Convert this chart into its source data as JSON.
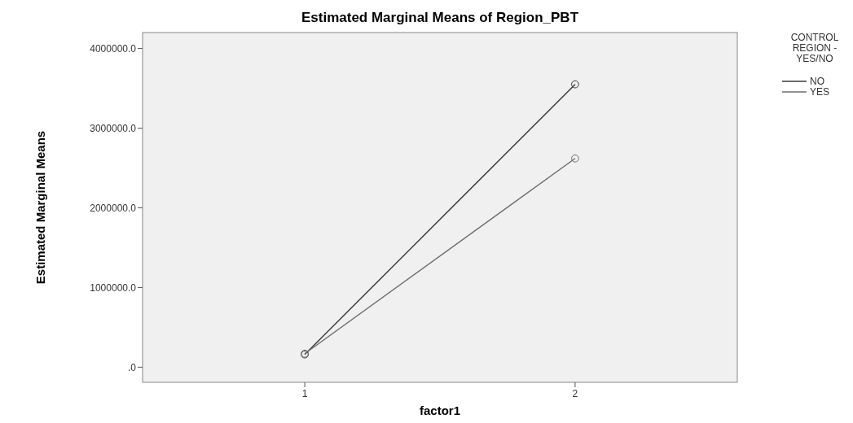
{
  "chart_data": {
    "type": "line",
    "title": "Estimated Marginal Means of Region_PBT",
    "xlabel": "factor1",
    "ylabel": "Estimated Marginal Means",
    "legend_title": "CONTROL REGION - YES/NO",
    "categories": [
      "1",
      "2"
    ],
    "series": [
      {
        "name": "NO",
        "color": "#3a3a3a",
        "values": [
          160000,
          3550000
        ]
      },
      {
        "name": "YES",
        "color": "#6e6e6e",
        "values": [
          170000,
          2620000
        ]
      }
    ],
    "ylim": [
      -190000,
      4200000
    ],
    "yticks": [
      {
        "value": 0,
        "label": ".0"
      },
      {
        "value": 1000000,
        "label": "1000000.0"
      },
      {
        "value": 2000000,
        "label": "2000000.0"
      },
      {
        "value": 3000000,
        "label": "3000000.0"
      },
      {
        "value": 4000000,
        "label": "4000000.0"
      }
    ],
    "marker": "circle",
    "legend": "right",
    "grid": false
  }
}
